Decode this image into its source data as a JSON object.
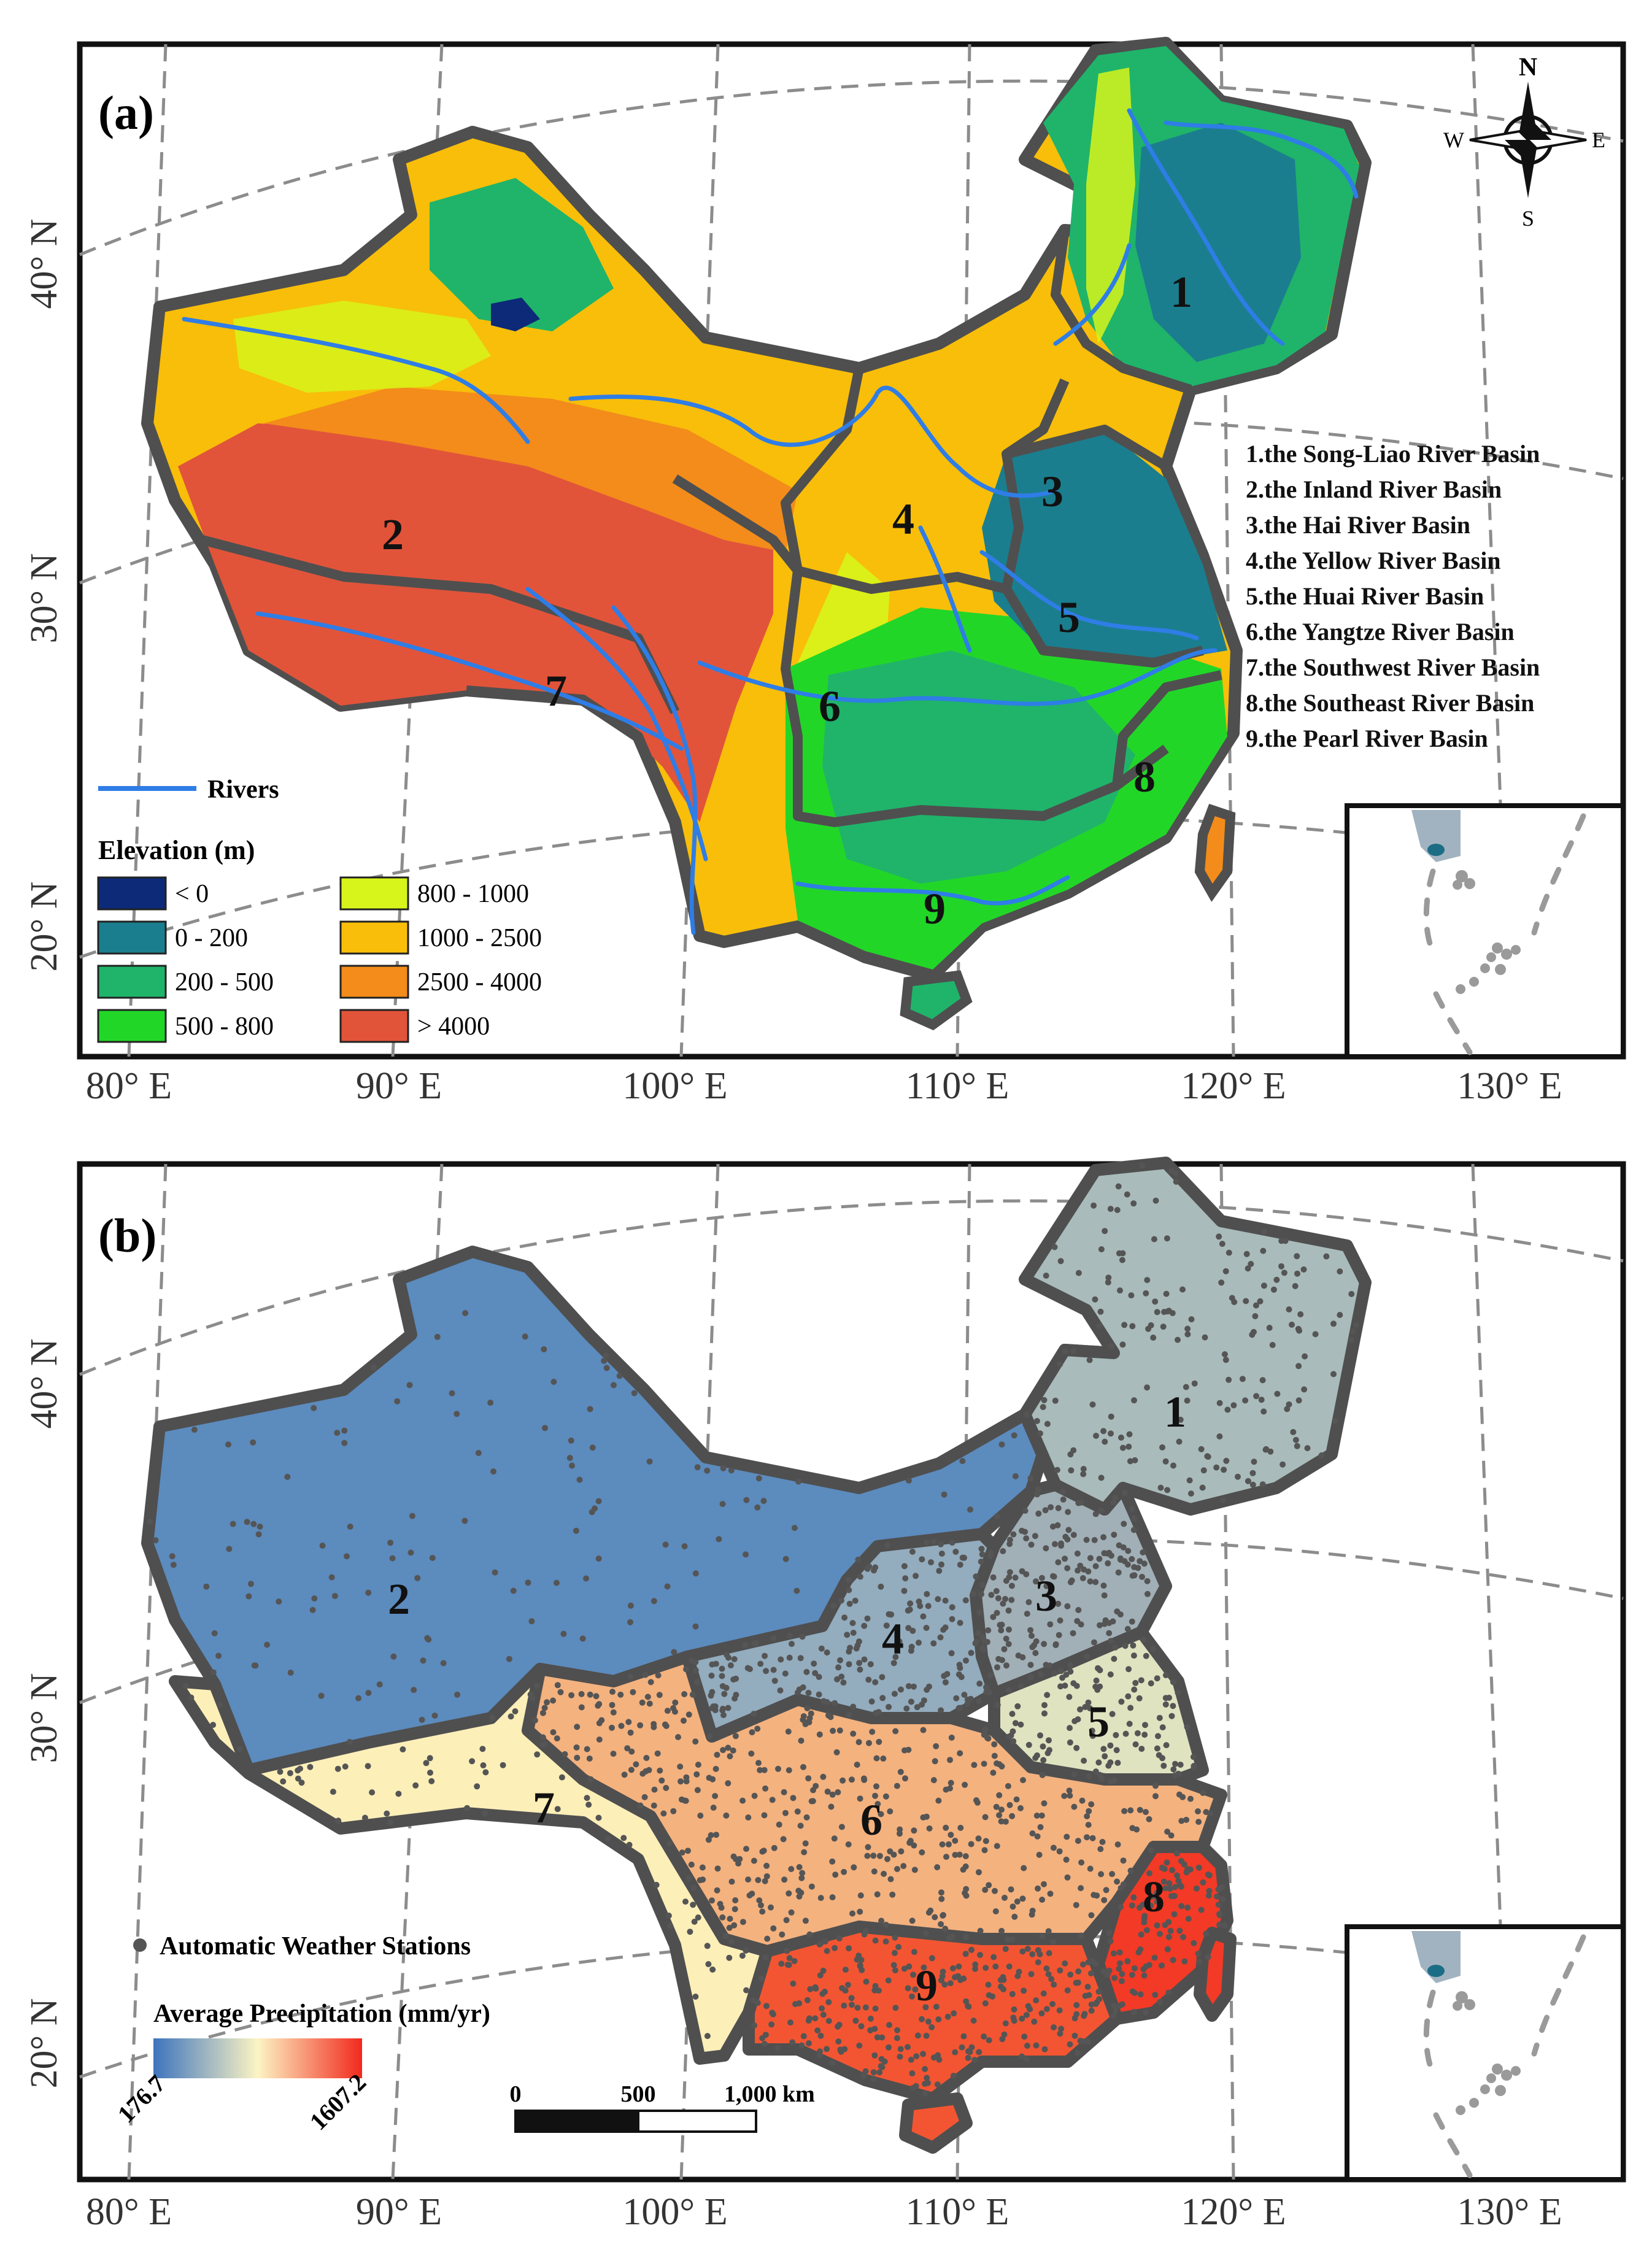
{
  "panel_a": {
    "label": "(a)",
    "basin_numbers": [
      "1",
      "2",
      "3",
      "4",
      "5",
      "6",
      "7",
      "8",
      "9"
    ],
    "basin_legend": [
      "1.the Song-Liao River Basin",
      "2.the Inland River Basin",
      "3.the Hai River Basin",
      "4.the Yellow River Basin",
      "5.the Huai River Basin",
      "6.the Yangtze River Basin",
      "7.the Southwest River Basin",
      "8.the Southeast River Basin",
      "9.the Pearl River Basin"
    ],
    "rivers_label": "Rivers",
    "elevation_title": "Elevation (m)",
    "elevation_classes": [
      {
        "label": "< 0",
        "color": "#0c2a78"
      },
      {
        "label": "0 - 200",
        "color": "#1b7e8e"
      },
      {
        "label": "200 - 500",
        "color": "#1fb46a"
      },
      {
        "label": "500 - 800",
        "color": "#22d628"
      },
      {
        "label": "800 - 1000",
        "color": "#d7f51a"
      },
      {
        "label": "1000  - 2500",
        "color": "#f8be0a"
      },
      {
        "label": "2500  - 4000",
        "color": "#f38c1a"
      },
      {
        "label": "> 4000",
        "color": "#e1543a"
      }
    ],
    "compass": {
      "n": "N",
      "s": "S",
      "e": "E",
      "w": "W"
    }
  },
  "panel_b": {
    "label": "(b)",
    "basin_numbers": [
      "1",
      "2",
      "3",
      "4",
      "5",
      "6",
      "7",
      "8",
      "9"
    ],
    "stations_label": "Automatic Weather Stations",
    "precip_title": "Average Precipitation (mm/yr)",
    "precip_min": "176.7",
    "precip_max": "1607.2",
    "scale_labels": [
      "0",
      "500",
      "1,000 km"
    ]
  },
  "lat_labels": [
    "40° N",
    "30° N",
    "20° N"
  ],
  "lon_labels": [
    "80° E",
    "90° E",
    "100° E",
    "110° E",
    "120° E",
    "130° E"
  ],
  "colors": {
    "boundary": "#4f4f4f",
    "river": "#2f7de6",
    "station": "#555555",
    "grid": "#8c8c8c",
    "basin_b": {
      "1": "#a9bbba",
      "2": "#5c8bbd",
      "3": "#a1afb6",
      "4": "#93acbe",
      "5": "#dfe3c0",
      "6": "#f4b27f",
      "7": "#fcefb8",
      "8": "#f23a26",
      "9": "#f35532"
    }
  }
}
